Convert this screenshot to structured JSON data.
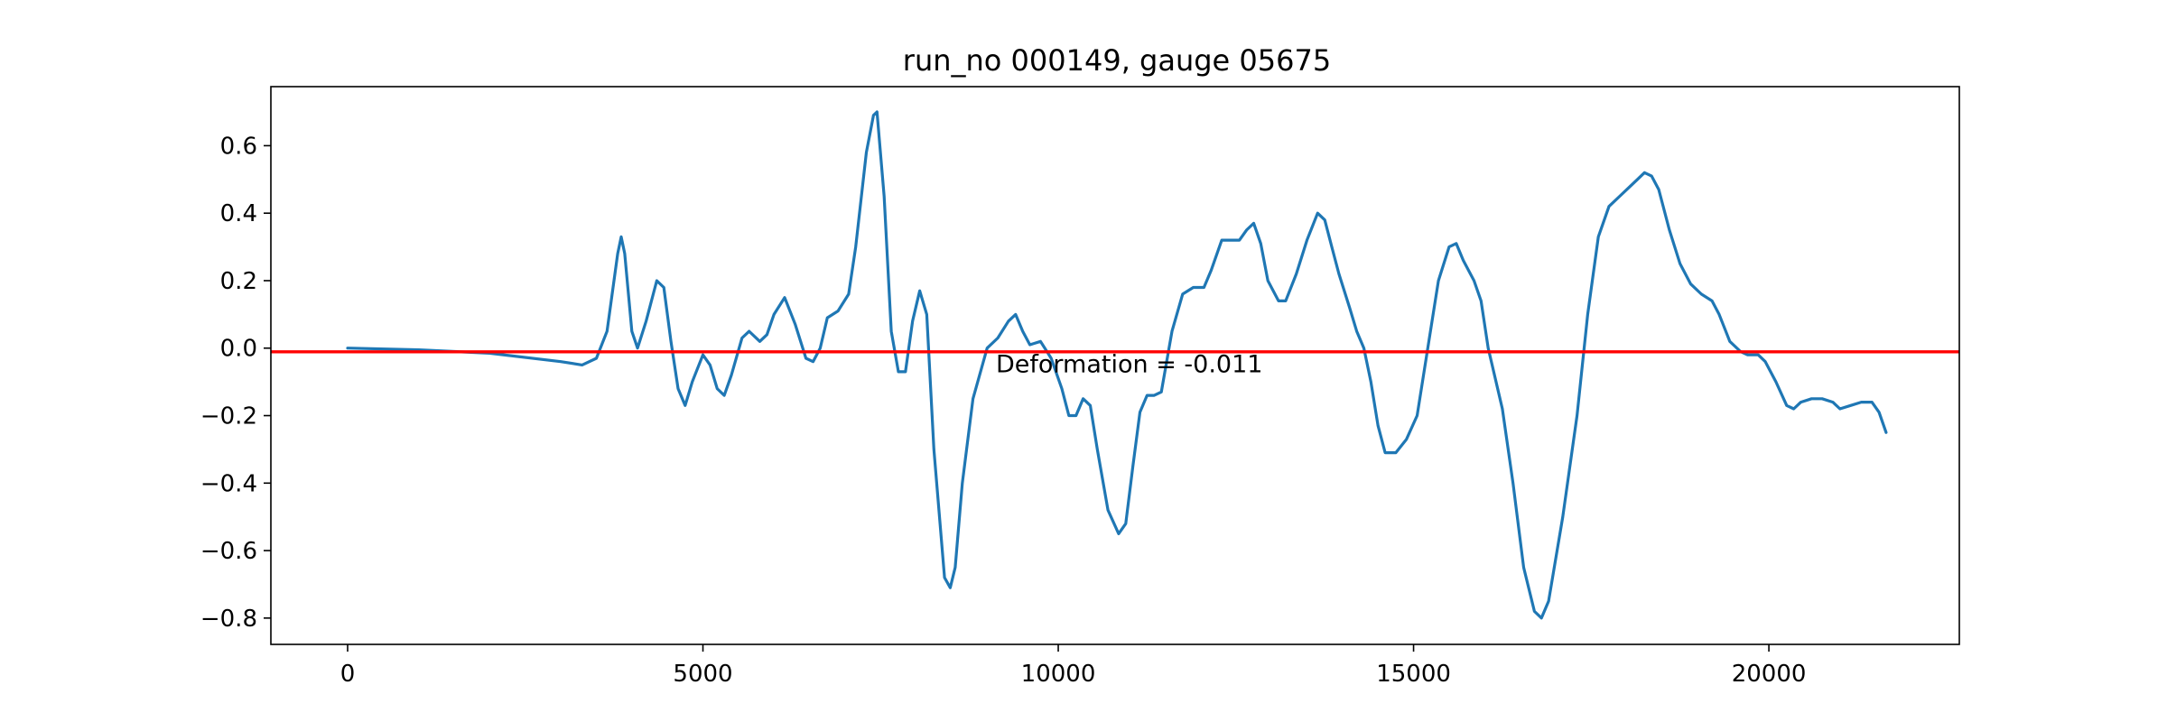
{
  "chart_data": {
    "type": "line",
    "title": "run_no 000149, gauge 05675",
    "xlabel": "",
    "ylabel": "",
    "xlim": [
      -1080,
      22680
    ],
    "ylim": [
      -0.878,
      0.775
    ],
    "xticks": [
      0,
      5000,
      10000,
      15000,
      20000
    ],
    "xtick_labels": [
      "0",
      "5000",
      "10000",
      "15000",
      "20000"
    ],
    "yticks": [
      -0.8,
      -0.6,
      -0.4,
      -0.2,
      0.0,
      0.2,
      0.4,
      0.6
    ],
    "ytick_labels": [
      "−0.8",
      "−0.6",
      "−0.4",
      "−0.2",
      "0.0",
      "0.2",
      "0.4",
      "0.6"
    ],
    "grid": false,
    "series": [
      {
        "color": "#1f77b4",
        "points": [
          [
            0,
            0.0
          ],
          [
            1000,
            -0.005
          ],
          [
            2000,
            -0.015
          ],
          [
            3000,
            -0.04
          ],
          [
            3300,
            -0.05
          ],
          [
            3500,
            -0.03
          ],
          [
            3650,
            0.05
          ],
          [
            3800,
            0.28
          ],
          [
            3850,
            0.33
          ],
          [
            3900,
            0.28
          ],
          [
            4000,
            0.05
          ],
          [
            4080,
            0.0
          ],
          [
            4200,
            0.08
          ],
          [
            4350,
            0.2
          ],
          [
            4450,
            0.18
          ],
          [
            4550,
            0.02
          ],
          [
            4650,
            -0.12
          ],
          [
            4750,
            -0.17
          ],
          [
            4850,
            -0.1
          ],
          [
            5000,
            -0.02
          ],
          [
            5100,
            -0.05
          ],
          [
            5200,
            -0.12
          ],
          [
            5300,
            -0.14
          ],
          [
            5400,
            -0.08
          ],
          [
            5550,
            0.03
          ],
          [
            5650,
            0.05
          ],
          [
            5800,
            0.02
          ],
          [
            5900,
            0.04
          ],
          [
            6000,
            0.1
          ],
          [
            6150,
            0.15
          ],
          [
            6300,
            0.07
          ],
          [
            6450,
            -0.03
          ],
          [
            6550,
            -0.04
          ],
          [
            6650,
            0.0
          ],
          [
            6750,
            0.09
          ],
          [
            6900,
            0.11
          ],
          [
            7050,
            0.16
          ],
          [
            7150,
            0.3
          ],
          [
            7300,
            0.58
          ],
          [
            7400,
            0.69
          ],
          [
            7450,
            0.7
          ],
          [
            7550,
            0.45
          ],
          [
            7650,
            0.05
          ],
          [
            7750,
            -0.07
          ],
          [
            7850,
            -0.07
          ],
          [
            7950,
            0.08
          ],
          [
            8050,
            0.17
          ],
          [
            8150,
            0.1
          ],
          [
            8250,
            -0.3
          ],
          [
            8400,
            -0.68
          ],
          [
            8480,
            -0.71
          ],
          [
            8550,
            -0.65
          ],
          [
            8650,
            -0.4
          ],
          [
            8800,
            -0.15
          ],
          [
            9000,
            0.0
          ],
          [
            9150,
            0.03
          ],
          [
            9300,
            0.08
          ],
          [
            9400,
            0.1
          ],
          [
            9500,
            0.05
          ],
          [
            9600,
            0.01
          ],
          [
            9750,
            0.02
          ],
          [
            9900,
            -0.03
          ],
          [
            10050,
            -0.12
          ],
          [
            10150,
            -0.2
          ],
          [
            10250,
            -0.2
          ],
          [
            10350,
            -0.15
          ],
          [
            10450,
            -0.17
          ],
          [
            10550,
            -0.3
          ],
          [
            10700,
            -0.48
          ],
          [
            10850,
            -0.55
          ],
          [
            10950,
            -0.52
          ],
          [
            11050,
            -0.35
          ],
          [
            11150,
            -0.19
          ],
          [
            11250,
            -0.14
          ],
          [
            11350,
            -0.14
          ],
          [
            11450,
            -0.13
          ],
          [
            11600,
            0.05
          ],
          [
            11750,
            0.16
          ],
          [
            11900,
            0.18
          ],
          [
            12050,
            0.18
          ],
          [
            12150,
            0.23
          ],
          [
            12300,
            0.32
          ],
          [
            12450,
            0.32
          ],
          [
            12550,
            0.32
          ],
          [
            12650,
            0.35
          ],
          [
            12750,
            0.37
          ],
          [
            12850,
            0.31
          ],
          [
            12950,
            0.2
          ],
          [
            13100,
            0.14
          ],
          [
            13200,
            0.14
          ],
          [
            13350,
            0.22
          ],
          [
            13500,
            0.32
          ],
          [
            13650,
            0.4
          ],
          [
            13750,
            0.38
          ],
          [
            13850,
            0.3
          ],
          [
            13950,
            0.22
          ],
          [
            14100,
            0.12
          ],
          [
            14200,
            0.05
          ],
          [
            14300,
            0.0
          ],
          [
            14400,
            -0.1
          ],
          [
            14500,
            -0.23
          ],
          [
            14600,
            -0.31
          ],
          [
            14750,
            -0.31
          ],
          [
            14900,
            -0.27
          ],
          [
            15050,
            -0.2
          ],
          [
            15200,
            0.0
          ],
          [
            15350,
            0.2
          ],
          [
            15500,
            0.3
          ],
          [
            15600,
            0.31
          ],
          [
            15700,
            0.26
          ],
          [
            15850,
            0.2
          ],
          [
            15950,
            0.14
          ],
          [
            16050,
            0.0
          ],
          [
            16250,
            -0.18
          ],
          [
            16400,
            -0.4
          ],
          [
            16550,
            -0.65
          ],
          [
            16700,
            -0.78
          ],
          [
            16800,
            -0.8
          ],
          [
            16900,
            -0.75
          ],
          [
            17100,
            -0.5
          ],
          [
            17300,
            -0.2
          ],
          [
            17450,
            0.1
          ],
          [
            17600,
            0.33
          ],
          [
            17750,
            0.42
          ],
          [
            17900,
            0.45
          ],
          [
            18050,
            0.48
          ],
          [
            18150,
            0.5
          ],
          [
            18250,
            0.52
          ],
          [
            18350,
            0.51
          ],
          [
            18450,
            0.47
          ],
          [
            18600,
            0.35
          ],
          [
            18750,
            0.25
          ],
          [
            18900,
            0.19
          ],
          [
            19050,
            0.16
          ],
          [
            19200,
            0.14
          ],
          [
            19300,
            0.1
          ],
          [
            19450,
            0.02
          ],
          [
            19600,
            -0.01
          ],
          [
            19700,
            -0.02
          ],
          [
            19850,
            -0.02
          ],
          [
            19950,
            -0.04
          ],
          [
            20100,
            -0.1
          ],
          [
            20250,
            -0.17
          ],
          [
            20350,
            -0.18
          ],
          [
            20450,
            -0.16
          ],
          [
            20600,
            -0.15
          ],
          [
            20750,
            -0.15
          ],
          [
            20900,
            -0.16
          ],
          [
            21000,
            -0.18
          ],
          [
            21150,
            -0.17
          ],
          [
            21300,
            -0.16
          ],
          [
            21450,
            -0.16
          ],
          [
            21550,
            -0.19
          ],
          [
            21650,
            -0.25
          ]
        ]
      }
    ],
    "reference_line": {
      "y": -0.011,
      "color": "#ff0000"
    },
    "annotation": {
      "text": "Deformation = -0.011",
      "x": 11000,
      "y": -0.045
    }
  }
}
